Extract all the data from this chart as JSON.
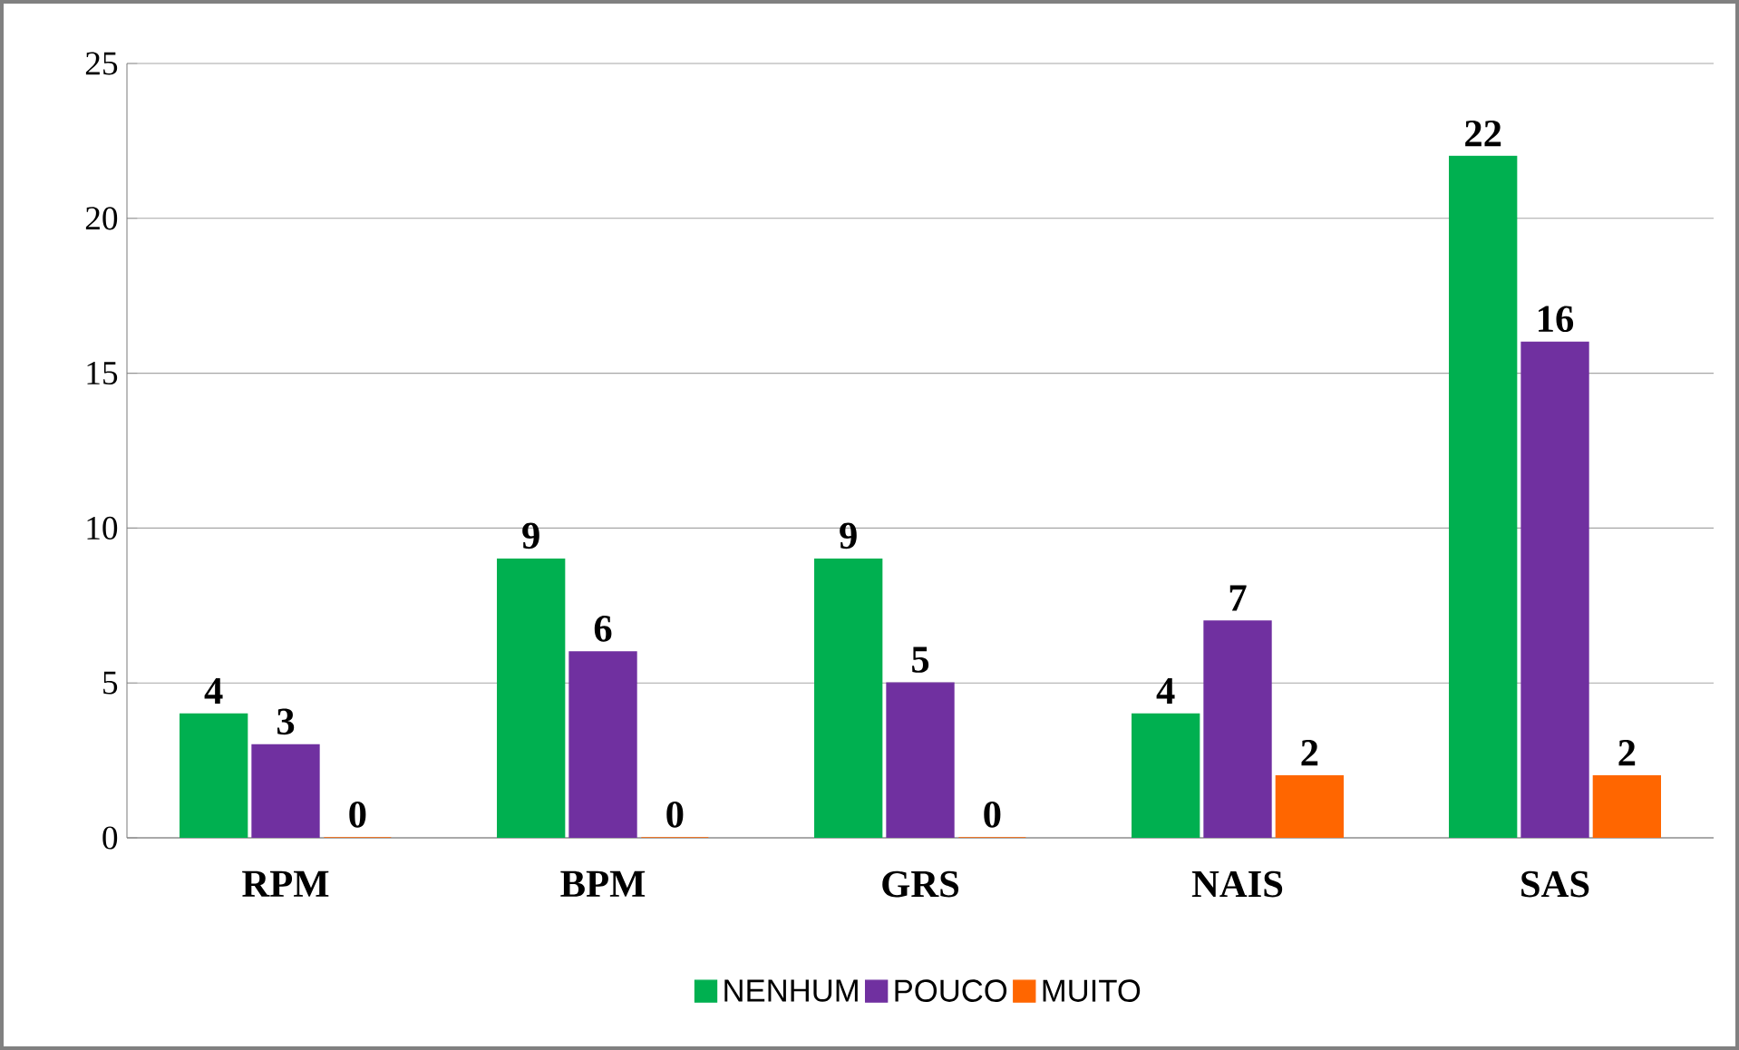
{
  "chart_data": {
    "type": "bar",
    "categories": [
      "RPM",
      "BPM",
      "GRS",
      "NAIS",
      "SAS"
    ],
    "series": [
      {
        "name": "NENHUM",
        "color": "#00b050",
        "values": [
          4,
          9,
          9,
          4,
          22
        ]
      },
      {
        "name": "POUCO",
        "color": "#7030a0",
        "values": [
          3,
          6,
          5,
          7,
          16
        ]
      },
      {
        "name": "MUITO",
        "color": "#ff6600",
        "values": [
          0,
          0,
          0,
          2,
          2
        ]
      }
    ],
    "ylim": [
      0,
      25
    ],
    "yticks": [
      0,
      5,
      10,
      15,
      20,
      25
    ],
    "grid": "y",
    "legend": "bottom",
    "data_labels": true
  }
}
